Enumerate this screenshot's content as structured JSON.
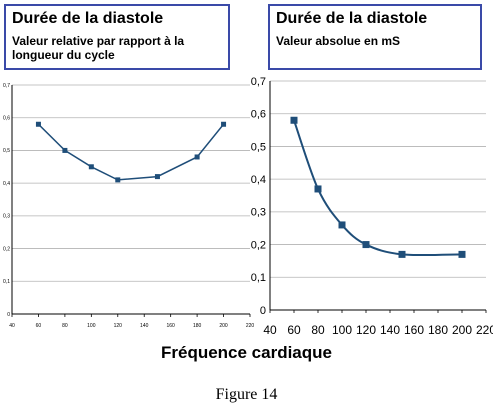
{
  "left_panel": {
    "title": "Durée de la diastole",
    "subtitle": "Valeur relative par rapport à la longueur du cycle"
  },
  "right_panel": {
    "title": "Durée de la diastole",
    "subtitle": "Valeur absolue en mS"
  },
  "x_axis_caption": "Fréquence cardiaque",
  "figure_caption": "Figure 14",
  "colors": {
    "series": "#1f4e79",
    "grid": "#b3b3b3",
    "axis": "#000000"
  },
  "chart_data": [
    {
      "type": "line",
      "x": [
        60,
        80,
        100,
        120,
        150,
        180,
        200
      ],
      "series": [
        {
          "values": [
            0.58,
            0.5,
            0.45,
            0.41,
            0.42,
            0.48,
            0.58
          ]
        }
      ],
      "xlim": [
        40,
        220
      ],
      "xticks": [
        "40",
        "60",
        "80",
        "100",
        "120",
        "140",
        "160",
        "180",
        "200",
        "220"
      ],
      "ylim": [
        0,
        0.7
      ],
      "yticks": [
        "0",
        "0,1",
        "0,2",
        "0,3",
        "0,4",
        "0,5",
        "0,6",
        "0,7"
      ],
      "grid": true,
      "smooth": false
    },
    {
      "type": "line",
      "x": [
        60,
        80,
        100,
        120,
        150,
        200
      ],
      "series": [
        {
          "values": [
            0.58,
            0.37,
            0.26,
            0.2,
            0.17,
            0.17
          ]
        }
      ],
      "xlim": [
        40,
        220
      ],
      "xticks": [
        "40",
        "60",
        "80",
        "100",
        "120",
        "140",
        "160",
        "180",
        "200",
        "220"
      ],
      "ylim": [
        0,
        0.7
      ],
      "yticks": [
        "0",
        "0,1",
        "0,2",
        "0,3",
        "0,4",
        "0,5",
        "0,6",
        "0,7"
      ],
      "grid": true,
      "smooth": true
    }
  ]
}
